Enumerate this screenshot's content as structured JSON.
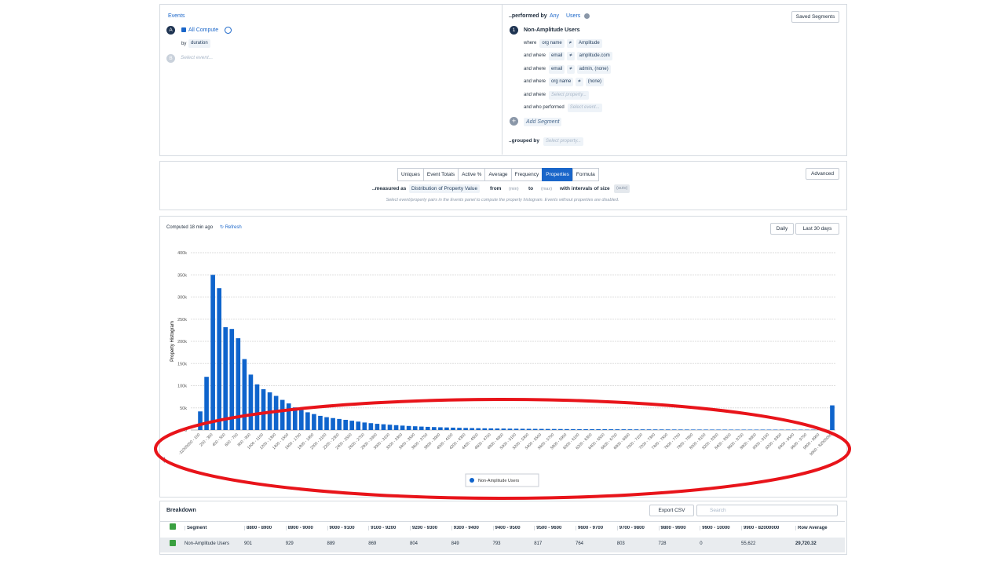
{
  "events": {
    "title": "Events",
    "a_badge": "A",
    "event": "All Compute",
    "by": "by",
    "property": "duration",
    "b_badge": "B",
    "placeholder": "Select event..."
  },
  "segment": {
    "performed_by": "..performed by",
    "any": "Any",
    "users": "Users",
    "saved": "Saved Segments",
    "index": "1",
    "name": "Non-Amplitude Users",
    "filters": [
      {
        "prefix": "where",
        "property": "org name",
        "op": "≠",
        "value": "Amplitude"
      },
      {
        "prefix": "and where",
        "property": "email",
        "op": "≠",
        "value": "amplitude.com"
      },
      {
        "prefix": "and where",
        "property": "email",
        "op": "≠",
        "value": "admin, (none)"
      },
      {
        "prefix": "and where",
        "property": "org name",
        "op": "≠",
        "value": "(none)"
      },
      {
        "prefix": "and where",
        "placeholder": "Select property..."
      },
      {
        "prefix": "and who performed",
        "placeholder": "Select event..."
      }
    ],
    "add": "Add Segment",
    "grouped_by": "..grouped by",
    "grouped_placeholder": "Select property..."
  },
  "measure": {
    "tabs": [
      "Uniques",
      "Event Totals",
      "Active %",
      "Average",
      "Frequency",
      "Properties",
      "Formula"
    ],
    "active_tab": "Properties",
    "advanced": "Advanced",
    "measured_as": "..measured as",
    "metric": "Distribution of Property Value",
    "from": "from",
    "min": "(min)",
    "to": "to",
    "max": "(max)",
    "interval": "with intervals of size",
    "auto": "(auto)",
    "note": "Select event/property pairs in the Events panel to compute the property histogram. Events without properties are disabled."
  },
  "chart_header": {
    "computed": "Computed 18 min ago",
    "refresh": "Refresh",
    "interval": "Daily",
    "range": "Last 30 days"
  },
  "chart_data": {
    "type": "bar",
    "y_label": "Property Histogram",
    "grid": true,
    "categories": [
      "-11000000 - 100",
      null,
      "200 - 300",
      null,
      "400 - 500",
      null,
      "600 - 700",
      null,
      "800 - 900",
      null,
      "1000 - 1100",
      null,
      "1200 - 1300",
      null,
      "1400 - 1500",
      null,
      "1600 - 1700",
      null,
      "1800 - 1900",
      null,
      "2000 - 2100",
      null,
      "2200 - 2300",
      null,
      "2400 - 2500",
      null,
      "2600 - 2700",
      null,
      "2800 - 2900",
      null,
      "3000 - 3100",
      null,
      "3200 - 3300",
      null,
      "3400 - 3500",
      null,
      "3600 - 3700",
      null,
      "3800 - 3900",
      null,
      "4000 - 4100",
      null,
      "4200 - 4300",
      null,
      "4400 - 4500",
      null,
      "4600 - 4700",
      null,
      "4800 - 4900",
      null,
      "5000 - 5100",
      null,
      "5200 - 5300",
      null,
      "5400 - 5500",
      null,
      "5600 - 5700",
      null,
      "5800 - 5900",
      null,
      "6000 - 6100",
      null,
      "6200 - 6300",
      null,
      "6400 - 6500",
      null,
      "6600 - 6700",
      null,
      "6800 - 6900",
      null,
      "7000 - 7100",
      null,
      "7200 - 7300",
      null,
      "7400 - 7500",
      null,
      "7600 - 7700",
      null,
      "7800 - 7900",
      null,
      "8000 - 8100",
      null,
      "8200 - 8300",
      null,
      "8400 - 8500",
      null,
      "8600 - 8700",
      null,
      "8800 - 8900",
      null,
      "9000 - 9100",
      null,
      "9200 - 9300",
      null,
      "9400 - 9500",
      null,
      "9600 - 9700",
      null,
      "9800 - 9900",
      null,
      "9900 - 82000000"
    ],
    "series": [
      {
        "name": "Non-Amplitude Users",
        "color": "#0f64cc",
        "values": [
          42000,
          120000,
          350000,
          320000,
          232000,
          228000,
          207000,
          160000,
          125000,
          103000,
          92000,
          85000,
          77000,
          68000,
          60000,
          51000,
          45000,
          40000,
          36000,
          32000,
          29000,
          27000,
          25000,
          23000,
          21000,
          19000,
          17000,
          15500,
          14000,
          13000,
          12000,
          11000,
          10000,
          9200,
          8500,
          7800,
          7200,
          6700,
          6200,
          5800,
          5400,
          5000,
          4700,
          4400,
          4100,
          3900,
          3700,
          3500,
          3300,
          3100,
          3000,
          2800,
          2700,
          2600,
          2500,
          2400,
          2300,
          2200,
          2100,
          2000,
          1950,
          1900,
          1850,
          1800,
          1750,
          1700,
          1650,
          1600,
          1550,
          1500,
          1450,
          1400,
          1350,
          1300,
          1260,
          1220,
          1180,
          1140,
          1100,
          1070,
          1040,
          1010,
          990,
          970,
          950,
          930,
          920,
          910,
          901,
          929,
          889,
          869,
          804,
          849,
          793,
          817,
          764,
          803,
          728,
          0,
          55622
        ]
      }
    ],
    "ylim": [
      0,
      400000
    ],
    "yticks": [
      0,
      {
        "value": 50000,
        "label": "50k"
      },
      {
        "value": 100000,
        "label": "100k"
      },
      {
        "value": 150000,
        "label": "150k"
      },
      {
        "value": 200000,
        "label": "200k"
      },
      {
        "value": 250000,
        "label": "250k"
      },
      {
        "value": 300000,
        "label": "300k"
      },
      {
        "value": 350000,
        "label": "350k"
      },
      {
        "value": 400000,
        "label": "400k"
      }
    ]
  },
  "breakdown": {
    "title": "Breakdown",
    "export": "Export CSV",
    "search": "Search",
    "columns": [
      "Segment",
      "8800 - 8900",
      "8900 - 9000",
      "9000 - 9100",
      "9100 - 9200",
      "9200 - 9300",
      "9300 - 9400",
      "9400 - 9500",
      "9500 - 9600",
      "9600 - 9700",
      "9700 - 9800",
      "9800 - 9900",
      "9900 - 10000",
      "9900 - 82000000",
      "Row Average"
    ],
    "rows": [
      [
        "Non-Amplitude Users",
        "901",
        "929",
        "889",
        "869",
        "804",
        "849",
        "793",
        "817",
        "764",
        "803",
        "728",
        "0",
        "55,622",
        "29,720.32"
      ]
    ]
  }
}
